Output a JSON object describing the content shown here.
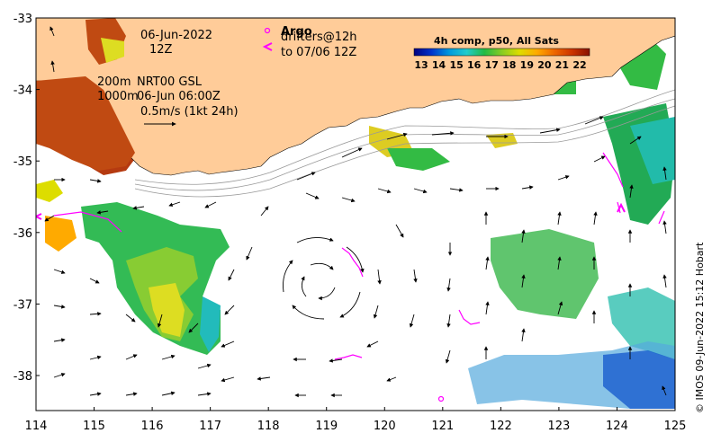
{
  "map": {
    "lon_ticks": [
      "114",
      "115",
      "116",
      "117",
      "118",
      "119",
      "120",
      "121",
      "122",
      "123",
      "124",
      "125"
    ],
    "lat_ticks": [
      "-33",
      "-34",
      "-35",
      "-36",
      "-37",
      "-38"
    ],
    "date_label": "06-Jun-2022",
    "time_label": "12Z",
    "model_label_1": "200m",
    "model_label_2": "NRT00 GSL",
    "model_label_3": "1000m",
    "model_label_4": "06-Jun 06:00Z",
    "scale_label": "0.5m/s (1kt 24h)",
    "argo_label": "Argo",
    "drifters_label": "drifters@12h",
    "drifters_to_label": "to 07/06 12Z",
    "colorbar_title": "4h comp, p50, All Sats",
    "colorbar_ticks": [
      "13",
      "14",
      "15",
      "16",
      "17",
      "18",
      "19",
      "20",
      "21",
      "22"
    ],
    "credit": "© IMOS 09-Jun-2022 15:12 Hobart",
    "colors": {
      "land": "#FFCC99",
      "drifter": "#FF00FF",
      "sst_cold": "#0000AA",
      "sst_warm": "#8B1A00"
    }
  }
}
